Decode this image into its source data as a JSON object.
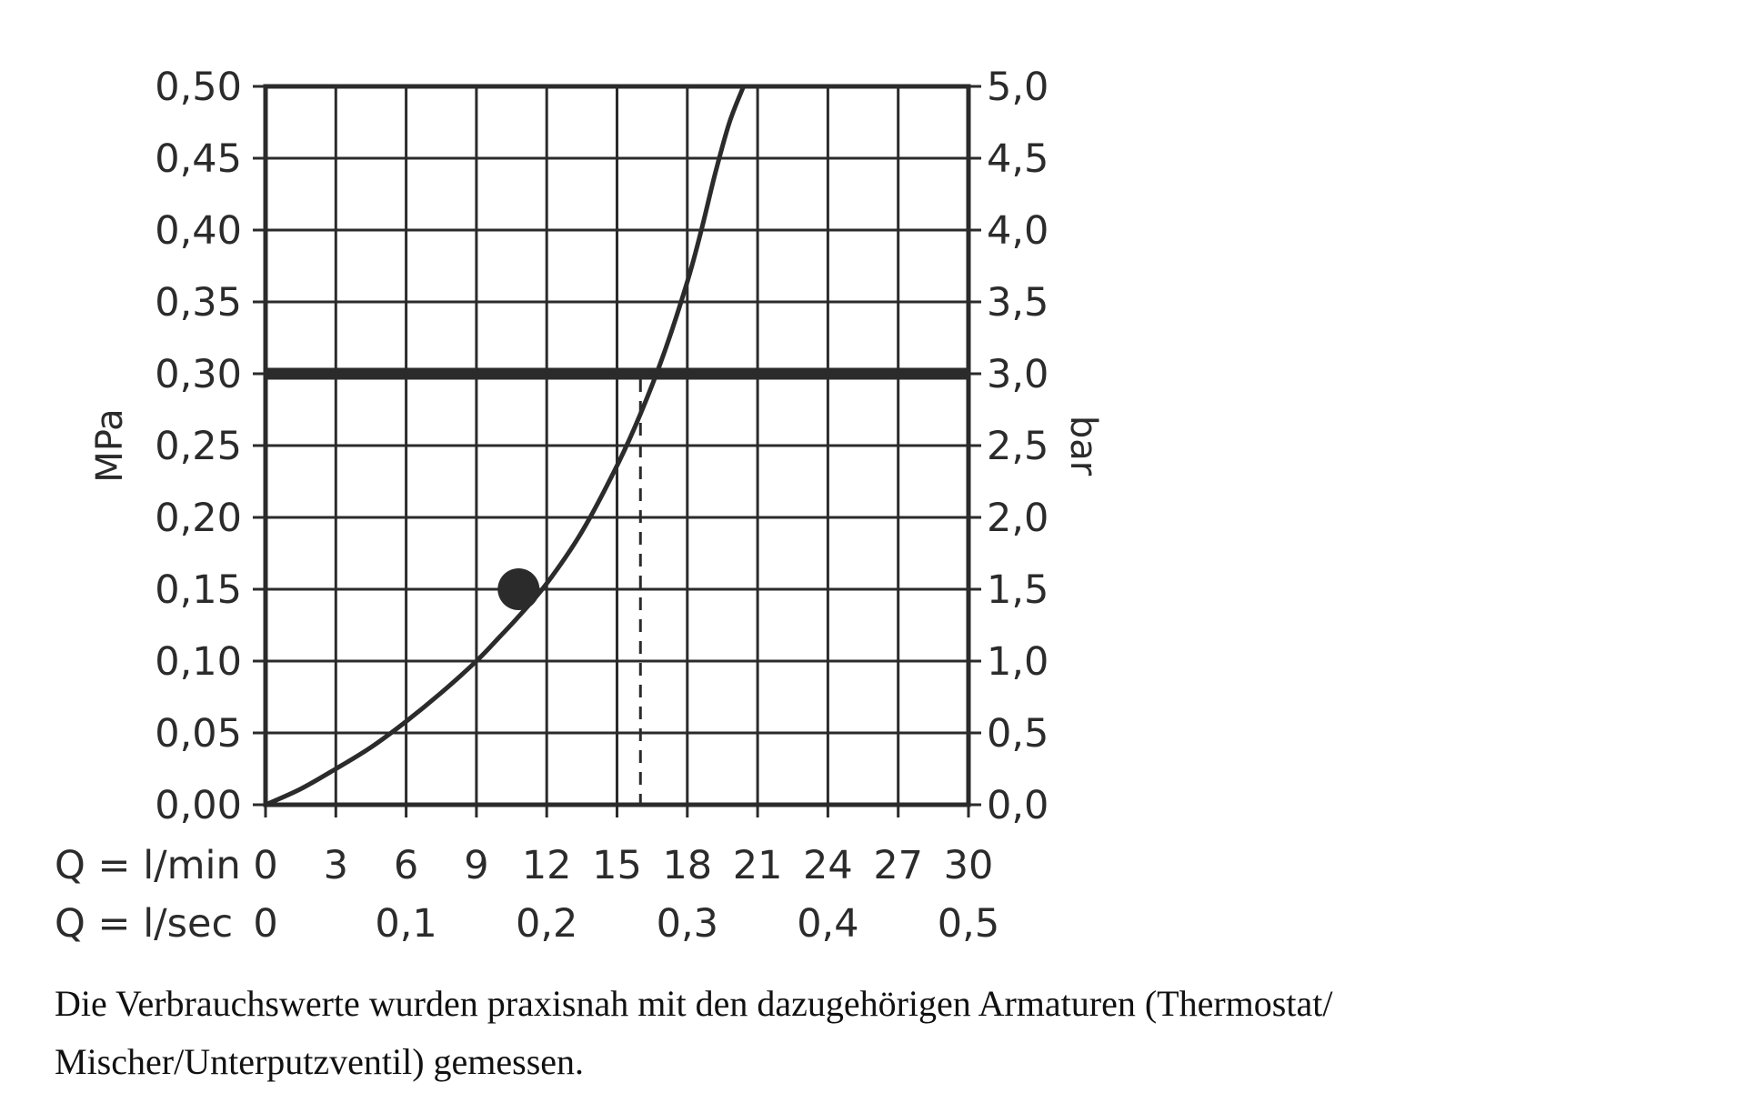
{
  "chart_data": {
    "type": "line",
    "title": "",
    "xlabel_lines": [
      "Q = l/min",
      "Q = l/sec"
    ],
    "ylabel_left": "MPa",
    "ylabel_right": "bar",
    "x_range": [
      0,
      30
    ],
    "y_range": [
      0,
      0.5
    ],
    "x_ticks_lmin": [
      "0",
      "3",
      "6",
      "9",
      "12",
      "15",
      "18",
      "21",
      "24",
      "27",
      "30"
    ],
    "x_ticks_lsec": [
      {
        "x": 0,
        "label": "0"
      },
      {
        "x": 6,
        "label": "0,1"
      },
      {
        "x": 12,
        "label": "0,2"
      },
      {
        "x": 18,
        "label": "0,3"
      },
      {
        "x": 24,
        "label": "0,4"
      },
      {
        "x": 30,
        "label": "0,5"
      }
    ],
    "y_ticks_mpa": [
      "0,00",
      "0,05",
      "0,10",
      "0,15",
      "0,20",
      "0,25",
      "0,30",
      "0,35",
      "0,40",
      "0,45",
      "0,50"
    ],
    "y_ticks_bar": [
      "0,0",
      "0,5",
      "1,0",
      "1,5",
      "2,0",
      "2,5",
      "3,0",
      "3,5",
      "4,0",
      "4,5",
      "5,0"
    ],
    "grid": true,
    "series": [
      {
        "x": [
          0,
          1.5,
          3,
          4.5,
          6,
          7.5,
          9,
          10,
          10.8,
          12,
          13.5,
          15,
          16,
          17,
          18,
          18.6,
          19.2,
          19.8,
          20.4
        ],
        "values": [
          0,
          0.011,
          0.025,
          0.04,
          0.058,
          0.078,
          0.1,
          0.117,
          0.131,
          0.154,
          0.19,
          0.236,
          0.272,
          0.314,
          0.364,
          0.4,
          0.44,
          0.475,
          0.5
        ]
      }
    ],
    "reference_line": {
      "y": 0.3,
      "style": "thick"
    },
    "drop_line": {
      "x": 16,
      "y_from": 0.3,
      "y_to": 0,
      "style": "dashed"
    },
    "marker_point": {
      "x": 10.8,
      "y": 0.15
    }
  },
  "caption": {
    "line1": "Die Verbrauchswerte wurden praxisnah mit den dazugehörigen Armaturen (Thermostat/",
    "line2": "Mischer/Unterputzventil) gemessen."
  },
  "colors": {
    "ink": "#2b2b2b",
    "grid": "#2b2b2b",
    "background": "#ffffff"
  }
}
